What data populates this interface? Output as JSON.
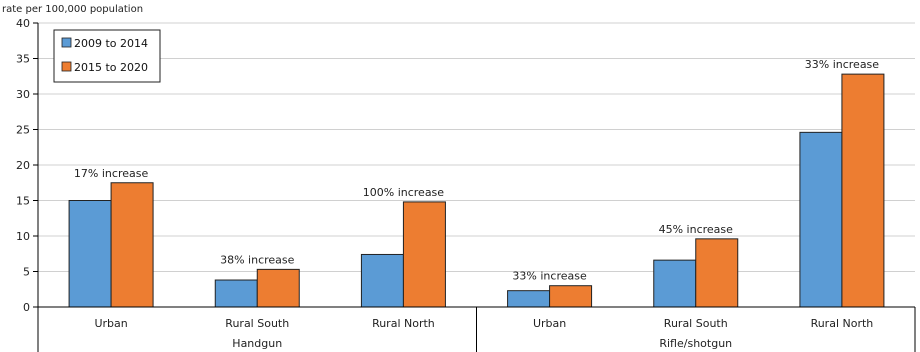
{
  "chart_data": {
    "type": "bar",
    "ylabel": "rate per 100,000 population",
    "ylim": [
      0,
      40
    ],
    "yticks": [
      0,
      5,
      10,
      15,
      20,
      25,
      30,
      35,
      40
    ],
    "grid": true,
    "legend": {
      "placement": "top-left",
      "entries": [
        "2009 to 2014",
        "2015 to 2020"
      ]
    },
    "groups": [
      {
        "label": "Handgun",
        "categories": [
          "Urban",
          "Rural South",
          "Rural North"
        ]
      },
      {
        "label": "Rifle/shotgun",
        "categories": [
          "Urban",
          "Rural South",
          "Rural North"
        ]
      }
    ],
    "series": [
      {
        "name": "2009 to 2014",
        "color": "#5B9BD5",
        "values": [
          15.0,
          3.8,
          7.4,
          2.3,
          6.6,
          24.6
        ]
      },
      {
        "name": "2015 to 2020",
        "color": "#ED7D31",
        "values": [
          17.5,
          5.3,
          14.8,
          3.0,
          9.6,
          32.8
        ]
      }
    ],
    "annotations": [
      "17% increase",
      "38% increase",
      "100% increase",
      "33% increase",
      "45% increase",
      "33% increase"
    ]
  }
}
